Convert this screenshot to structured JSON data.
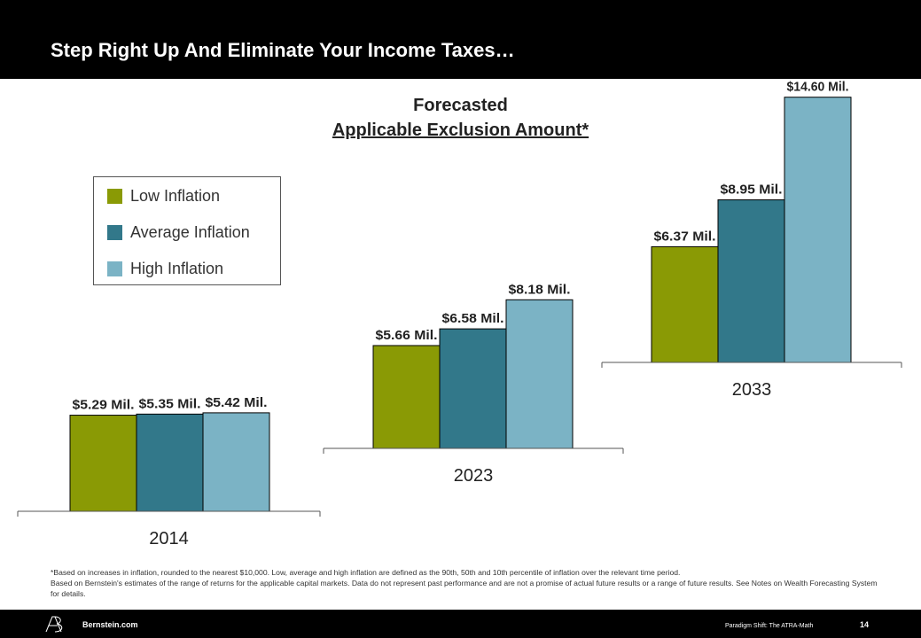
{
  "header": {
    "title": "Step Right Up And Eliminate Your Income Taxes…"
  },
  "chart_data": {
    "type": "bar",
    "title": "Forecasted",
    "subtitle": "Applicable Exclusion Amount*",
    "categories": [
      "2014",
      "2023",
      "2033"
    ],
    "series": [
      {
        "name": "Low Inflation",
        "color": "#8a9a05",
        "values": [
          5.29,
          5.66,
          6.37
        ],
        "labels": [
          "$5.29 Mil.",
          "$5.66 Mil.",
          "$6.37 Mil."
        ]
      },
      {
        "name": "Average Inflation",
        "color": "#32788a",
        "values": [
          5.35,
          6.58,
          8.95
        ],
        "labels": [
          "$5.35 Mil.",
          "$6.58 Mil.",
          "$8.95 Mil."
        ]
      },
      {
        "name": "High Inflation",
        "color": "#7bb3c5",
        "values": [
          5.42,
          8.18,
          14.6
        ],
        "labels": [
          "$5.42 Mil.",
          "$8.18 Mil.",
          "$14.60 Mil."
        ]
      }
    ],
    "legend_position": "top-left"
  },
  "footnote": {
    "line1": "*Based on increases in inflation, rounded to the nearest $10,000. Low, average and high inflation are defined as the 90th, 50th and 10th percentile of inflation over the relevant time period.",
    "line2": "Based on Bernstein's estimates of the range of returns for the applicable capital markets. Data do not represent past performance and are not a promise of actual future results or a range of future results. See Notes on Wealth Forecasting System for details."
  },
  "footer": {
    "site": "Bernstein.com",
    "presentation": "Paradigm Shift: The ATRA-Math",
    "page": "14",
    "logo_icon": "ab-logo-icon"
  }
}
